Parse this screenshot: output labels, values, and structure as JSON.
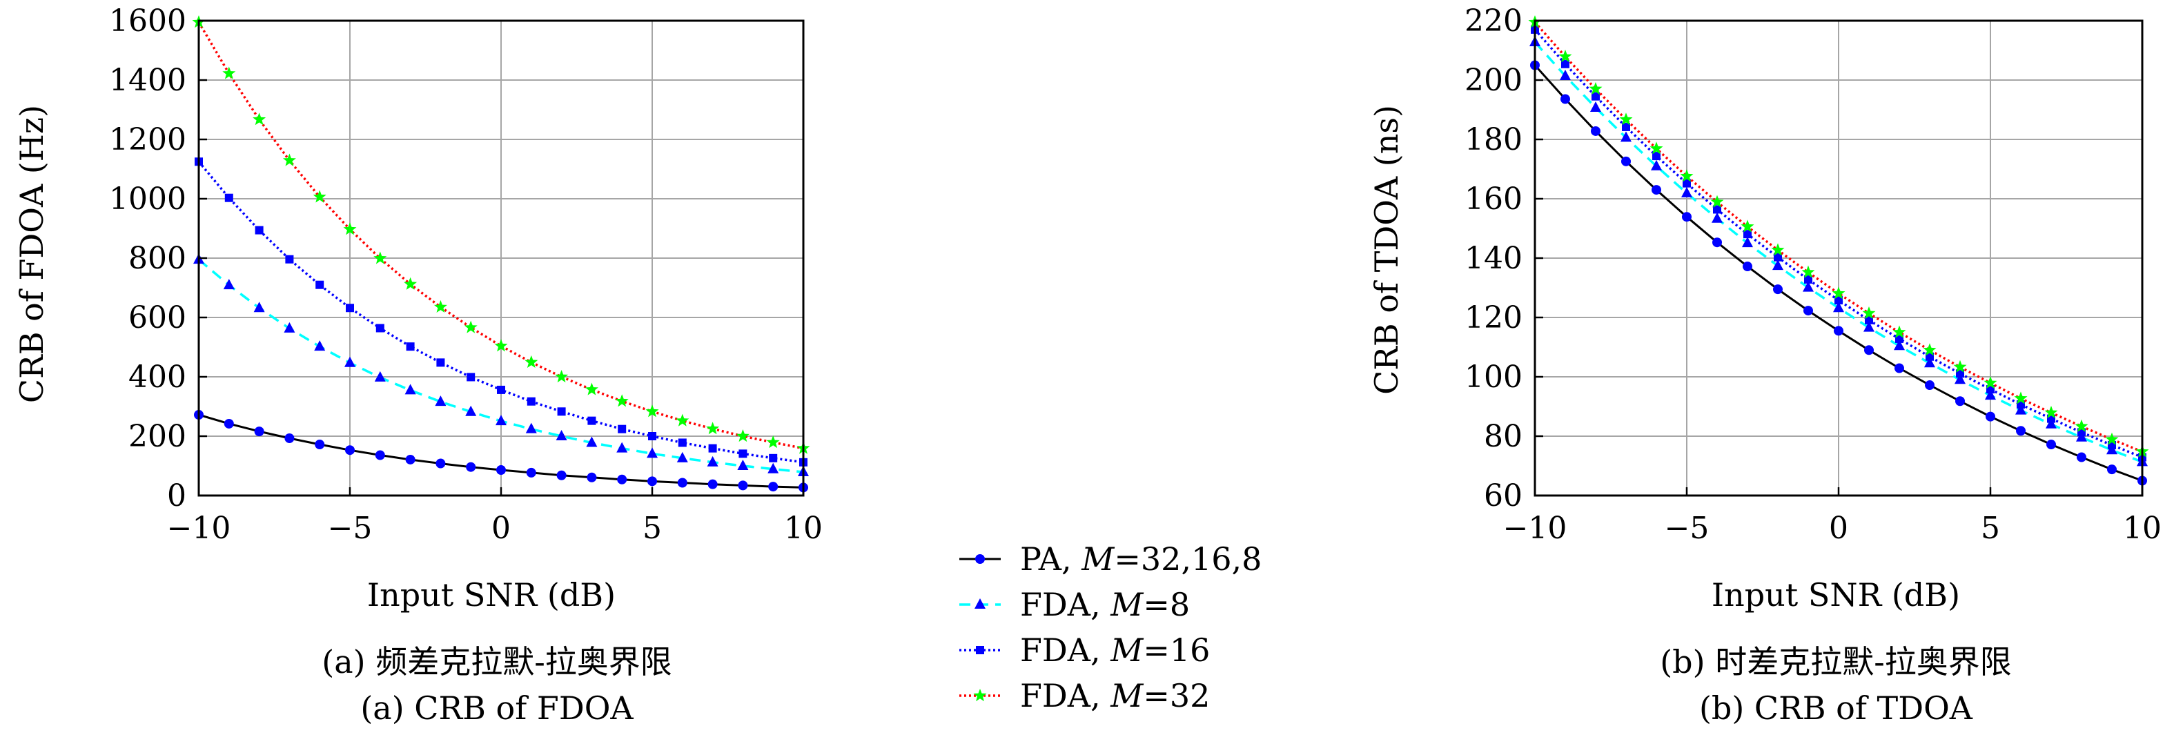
{
  "chart_data": [
    {
      "type": "line",
      "title": "",
      "xlabel": "Input SNR (dB)",
      "ylabel": "CRB of FDOA (Hz)",
      "xlim": [
        -10,
        10
      ],
      "ylim": [
        0,
        1600
      ],
      "xticks": [
        -10,
        -5,
        0,
        5,
        10
      ],
      "yticks": [
        0,
        200,
        400,
        600,
        800,
        1000,
        1200,
        1400,
        1600
      ],
      "xtick_labels": [
        "−10",
        "−5",
        "0",
        "5",
        "10"
      ],
      "ytick_labels": [
        "0",
        "200",
        "400",
        "600",
        "800",
        "1000",
        "1200",
        "1400",
        "1600"
      ],
      "grid": true,
      "caption_cn": "(a) 频差克拉默-拉奥界限",
      "caption_en": "(a) CRB of FDOA",
      "x": [
        -10,
        -9,
        -8,
        -7,
        -6,
        -5,
        -4,
        -3,
        -2,
        -1,
        0,
        1,
        2,
        3,
        4,
        5,
        6,
        7,
        8,
        9,
        10
      ],
      "series": [
        {
          "name": "PA, M=32,16,8",
          "values": [
            272,
            242,
            216,
            193,
            172,
            153,
            136,
            121,
            108,
            96,
            86,
            77,
            68,
            61,
            54,
            48,
            43,
            38,
            34,
            30,
            27
          ]
        },
        {
          "name": "FDA, M=8",
          "values": [
            795,
            709,
            632,
            563,
            502,
            447,
            398,
            355,
            316,
            282,
            251,
            224,
            200,
            178,
            159,
            141,
            126,
            112,
            100,
            89,
            79
          ]
        },
        {
          "name": "FDA, M=16",
          "values": [
            1125,
            1003,
            894,
            796,
            710,
            632,
            564,
            502,
            448,
            399,
            356,
            317,
            283,
            252,
            224,
            200,
            178,
            159,
            141,
            126,
            112
          ]
        },
        {
          "name": "FDA, M=32",
          "values": [
            1595,
            1422,
            1267,
            1129,
            1006,
            897,
            799,
            712,
            635,
            566,
            504,
            449,
            400,
            357,
            318,
            283,
            252,
            225,
            200,
            179,
            159
          ]
        }
      ]
    },
    {
      "type": "line",
      "title": "",
      "xlabel": "Input SNR (dB)",
      "ylabel": "CRB of TDOA (ns)",
      "xlim": [
        -10,
        10
      ],
      "ylim": [
        60,
        220
      ],
      "xticks": [
        -10,
        -5,
        0,
        5,
        10
      ],
      "yticks": [
        60,
        80,
        100,
        120,
        140,
        160,
        180,
        200,
        220
      ],
      "xtick_labels": [
        "−10",
        "−5",
        "0",
        "5",
        "10"
      ],
      "ytick_labels": [
        "60",
        "80",
        "100",
        "120",
        "140",
        "160",
        "180",
        "200",
        "220"
      ],
      "grid": true,
      "caption_cn": "(b) 时差克拉默-拉奥界限",
      "caption_en": "(b) CRB of TDOA",
      "x": [
        -10,
        -9,
        -8,
        -7,
        -6,
        -5,
        -4,
        -3,
        -2,
        -1,
        0,
        1,
        2,
        3,
        4,
        5,
        6,
        7,
        8,
        9,
        10
      ],
      "series": [
        {
          "name": "PA, M=32,16,8",
          "values": [
            205,
            193.6,
            182.8,
            172.6,
            163,
            153.9,
            145.3,
            137.2,
            129.5,
            122.3,
            115.5,
            109,
            102.9,
            97.2,
            91.8,
            86.6,
            81.8,
            77.2,
            72.9,
            68.8,
            65
          ]
        },
        {
          "name": "FDA, M=8",
          "values": [
            212.8,
            201.4,
            190.7,
            180.6,
            171,
            161.9,
            153.3,
            145.1,
            137.4,
            130.1,
            123.2,
            116.6,
            110.4,
            104.6,
            99,
            93.7,
            88.7,
            84,
            79.6,
            75.3,
            71.3
          ]
        },
        {
          "name": "FDA, M=16",
          "values": [
            217,
            205.4,
            194.5,
            184.2,
            174.4,
            165.2,
            156.4,
            148.1,
            140.3,
            132.8,
            125.8,
            119.1,
            112.8,
            106.8,
            101.1,
            95.8,
            90.7,
            85.9,
            81.3,
            77,
            72.9
          ]
        },
        {
          "name": "FDA, M=32",
          "values": [
            219.5,
            207.9,
            197,
            186.7,
            176.9,
            167.6,
            158.9,
            150.6,
            142.7,
            135.2,
            128.1,
            121.4,
            115,
            109,
            103.3,
            97.9,
            92.7,
            87.9,
            83.3,
            78.9,
            74.8
          ]
        }
      ]
    }
  ],
  "legend": {
    "placement": "center-bottom",
    "entries": [
      {
        "prefix": "PA, ",
        "var": "M",
        "suffix": "=32,16,8",
        "color": "#000000",
        "dash": "solid",
        "marker": "circle",
        "marker_color": "#0000ff"
      },
      {
        "prefix": "FDA, ",
        "var": "M",
        "suffix": "=8",
        "color": "#00ffff",
        "dash": "dashed",
        "marker": "triangle",
        "marker_color": "#0000ff"
      },
      {
        "prefix": "FDA, ",
        "var": "M",
        "suffix": "=16",
        "color": "#0000ff",
        "dash": "dotted",
        "marker": "square",
        "marker_color": "#0000ff"
      },
      {
        "prefix": "FDA, ",
        "var": "M",
        "suffix": "=32",
        "color": "#ff0000",
        "dash": "dotted",
        "marker": "star",
        "marker_color": "#00ff00"
      }
    ]
  }
}
